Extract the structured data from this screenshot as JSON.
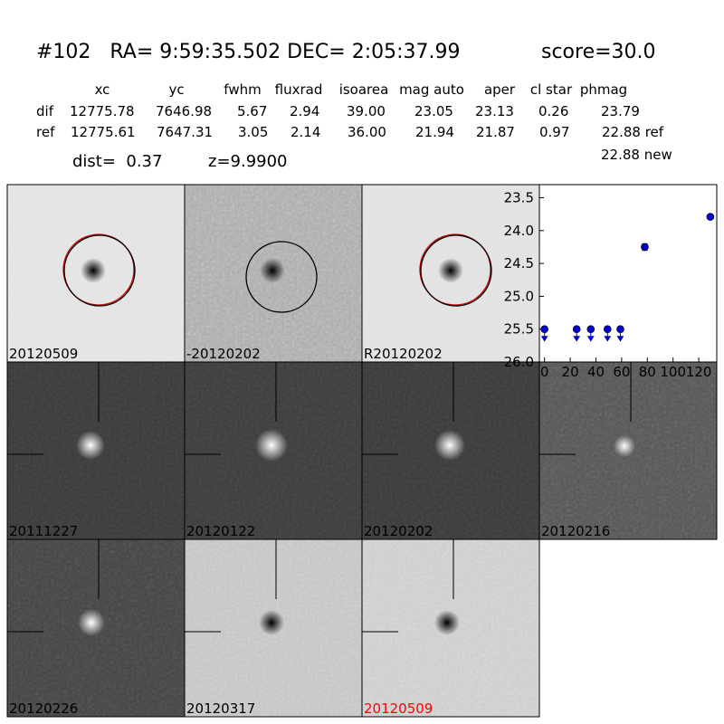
{
  "header": {
    "title": "#102   RA= 9:59:35.502 DEC= 2:05:37.99",
    "score": "score=30.0"
  },
  "table": {
    "header": [
      "xc",
      "yc",
      "fwhm",
      "fluxrad",
      "isoarea",
      "mag auto",
      "aper",
      "cl star",
      "phmag"
    ],
    "rows": [
      [
        "dif",
        "12775.78",
        "7646.98",
        "5.67",
        "2.94",
        "39.00",
        "23.05",
        "23.13",
        "0.26",
        "23.79"
      ],
      [
        "ref",
        "12775.61",
        "7647.31",
        "3.05",
        "2.14",
        "36.00",
        "21.94",
        "21.87",
        "0.97",
        "22.88 ref"
      ]
    ],
    "note": "22.88 new"
  },
  "dist": "dist=  0.37",
  "z": "z=9.9900",
  "stamps": [
    [
      "20120509",
      "-20120202",
      "R20120202"
    ],
    [
      "20111227",
      "20120122",
      "20120202",
      "20120216"
    ],
    [
      "20120226",
      "20120317",
      "20120509"
    ]
  ],
  "chart_data": {
    "type": "scatter",
    "xlim": [
      -4,
      134
    ],
    "xticks": [
      0,
      20,
      40,
      60,
      80,
      100,
      120
    ],
    "ylim": [
      26.0,
      23.3
    ],
    "yticks": [
      23.5,
      {
        "value": 24,
        "label": "24.0"
      },
      24.5,
      {
        "value": 25,
        "label": "25.0"
      },
      25.5,
      {
        "value": 26,
        "label": "26.0"
      }
    ],
    "series": [
      {
        "color": "#0000cc",
        "x": [
          78,
          129
        ],
        "values": [
          24.25,
          23.79
        ],
        "errors": [
          0.05,
          0.03
        ]
      },
      {
        "color": "#0000cc",
        "x": [
          0,
          25,
          36,
          49,
          59
        ],
        "values": [
          25.5,
          25.5,
          25.5,
          25.5,
          25.5
        ],
        "upper_limit": true
      }
    ]
  }
}
